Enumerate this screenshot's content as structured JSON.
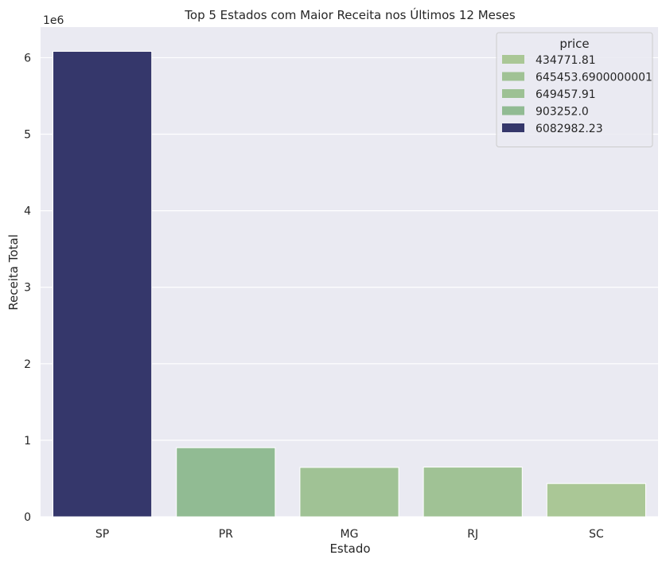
{
  "chart_data": {
    "type": "bar",
    "title": "Top 5 Estados com Maior Receita nos Últimos 12 Meses",
    "xlabel": "Estado",
    "ylabel": "Receita Total",
    "y_offset_label": "1e6",
    "categories": [
      "SP",
      "PR",
      "MG",
      "RJ",
      "SC"
    ],
    "values": [
      6082982.23,
      903252.0,
      645453.6900000001,
      649457.91,
      434771.81
    ],
    "bar_colors": [
      "#35376b",
      "#91bb93",
      "#a0c295",
      "#a0c295",
      "#aac796"
    ],
    "ylim": [
      0,
      6400000
    ],
    "yticks": [
      0,
      1000000,
      2000000,
      3000000,
      4000000,
      5000000,
      6000000
    ],
    "ytick_labels": [
      "0",
      "1",
      "2",
      "3",
      "4",
      "5",
      "6"
    ],
    "grid": true,
    "background": "#eaeaf2",
    "legend": {
      "title": "price",
      "placement": "top-right",
      "entries": [
        {
          "label": "434771.81",
          "color": "#aac796"
        },
        {
          "label": "645453.6900000001",
          "color": "#a0c295"
        },
        {
          "label": "649457.91",
          "color": "#9dc194"
        },
        {
          "label": "903252.0",
          "color": "#91bb93"
        },
        {
          "label": "6082982.23",
          "color": "#35376b"
        }
      ]
    }
  }
}
